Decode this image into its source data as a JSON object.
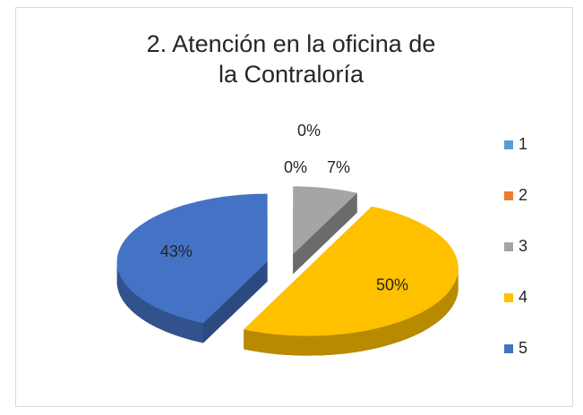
{
  "chart_data": {
    "type": "pie3d",
    "title": "2. Atención en la oficina de la Contraloría",
    "categories": [
      "1",
      "2",
      "3",
      "4",
      "5"
    ],
    "values": [
      0,
      0,
      7,
      50,
      43
    ],
    "value_labels": [
      "0%",
      "0%",
      "7%",
      "50%",
      "43%"
    ],
    "colors": [
      "#5b9bd5",
      "#ed7d31",
      "#a5a5a5",
      "#ffc000",
      "#4472c4"
    ],
    "legend": "right"
  }
}
